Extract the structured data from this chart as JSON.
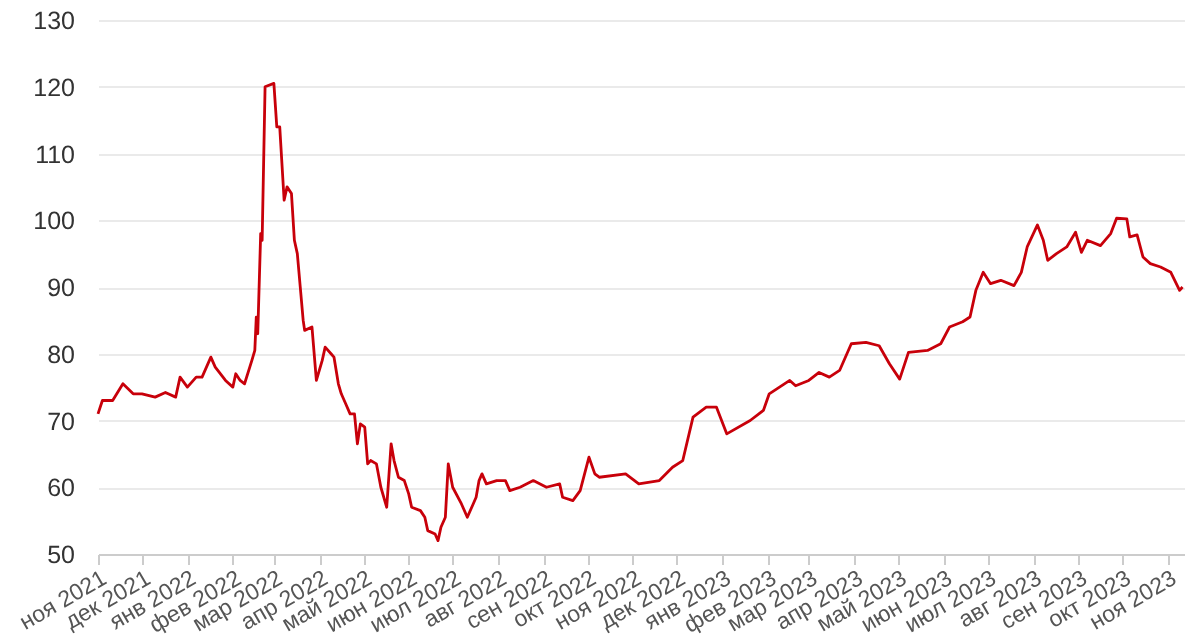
{
  "chart_data": {
    "type": "line",
    "x": [
      "2021-11-01",
      "2021-11-04",
      "2021-11-11",
      "2021-11-18",
      "2021-11-25",
      "2021-12-01",
      "2021-12-10",
      "2021-12-17",
      "2021-12-24",
      "2021-12-27",
      "2022-01-01",
      "2022-01-07",
      "2022-01-11",
      "2022-01-17",
      "2022-01-20",
      "2022-01-27",
      "2022-02-01",
      "2022-02-03",
      "2022-02-06",
      "2022-02-09",
      "2022-02-14",
      "2022-02-16",
      "2022-02-17",
      "2022-02-18",
      "2022-02-20",
      "2022-02-21",
      "2022-02-23",
      "2022-03-01",
      "2022-03-03",
      "2022-03-05",
      "2022-03-08",
      "2022-03-10",
      "2022-03-13",
      "2022-03-15",
      "2022-03-17",
      "2022-03-19",
      "2022-03-21",
      "2022-03-22",
      "2022-03-27",
      "2022-03-30",
      "2022-04-03",
      "2022-04-05",
      "2022-04-09",
      "2022-04-11",
      "2022-04-14",
      "2022-04-16",
      "2022-04-19",
      "2022-04-22",
      "2022-04-25",
      "2022-04-27",
      "2022-04-29",
      "2022-05-02",
      "2022-05-04",
      "2022-05-06",
      "2022-05-10",
      "2022-05-13",
      "2022-05-17",
      "2022-05-20",
      "2022-05-22",
      "2022-05-25",
      "2022-05-29",
      "2022-06-01",
      "2022-06-03",
      "2022-06-09",
      "2022-06-12",
      "2022-06-14",
      "2022-06-19",
      "2022-06-21",
      "2022-06-23",
      "2022-06-26",
      "2022-06-28",
      "2022-07-01",
      "2022-07-07",
      "2022-07-11",
      "2022-07-15",
      "2022-07-17",
      "2022-07-19",
      "2022-07-21",
      "2022-07-24",
      "2022-07-31",
      "2022-08-06",
      "2022-08-09",
      "2022-08-16",
      "2022-08-25",
      "2022-09-03",
      "2022-09-12",
      "2022-09-14",
      "2022-09-21",
      "2022-09-26",
      "2022-10-02",
      "2022-10-06",
      "2022-10-09",
      "2022-10-27",
      "2022-11-05",
      "2022-11-19",
      "2022-11-28",
      "2022-12-05",
      "2022-12-12",
      "2022-12-21",
      "2022-12-28",
      "2023-01-04",
      "2023-01-20",
      "2023-01-29",
      "2023-02-02",
      "2023-02-09",
      "2023-02-16",
      "2023-02-20",
      "2023-03-01",
      "2023-03-08",
      "2023-03-15",
      "2023-03-22",
      "2023-03-30",
      "2023-04-09",
      "2023-04-18",
      "2023-04-25",
      "2023-05-02",
      "2023-05-08",
      "2023-05-21",
      "2023-05-30",
      "2023-06-05",
      "2023-06-14",
      "2023-06-19",
      "2023-06-23",
      "2023-06-28",
      "2023-07-03",
      "2023-07-10",
      "2023-07-19",
      "2023-07-24",
      "2023-07-28",
      "2023-08-04",
      "2023-08-08",
      "2023-08-11",
      "2023-08-17",
      "2023-08-24",
      "2023-08-30",
      "2023-09-03",
      "2023-09-07",
      "2023-09-16",
      "2023-09-23",
      "2023-09-27",
      "2023-10-04",
      "2023-10-06",
      "2023-10-11",
      "2023-10-15",
      "2023-10-20",
      "2023-10-27",
      "2023-11-03",
      "2023-11-09",
      "2023-11-11"
    ],
    "series": [
      {
        "color": "#c8000a",
        "values": [
          71,
          73,
          73,
          75.5,
          74,
          74,
          73.5,
          74.2,
          73.5,
          76.5,
          75,
          76.5,
          76.5,
          79.5,
          78,
          76,
          75,
          77,
          76,
          75.5,
          79,
          80.5,
          85.5,
          83,
          98,
          97,
          120,
          120.5,
          114,
          114,
          103,
          105,
          104,
          97,
          95,
          90,
          85,
          83.5,
          84,
          76,
          79,
          81,
          80,
          79.5,
          75.5,
          74,
          72.5,
          71,
          71,
          66.5,
          69.5,
          69,
          63.5,
          64,
          63.5,
          60,
          57,
          66.5,
          64,
          61.5,
          61,
          59,
          57,
          56.5,
          55.5,
          53.5,
          53,
          52,
          54,
          55.5,
          63.5,
          60,
          57.5,
          55.5,
          57.5,
          58.5,
          61,
          62,
          60.5,
          61,
          61,
          59.5,
          60,
          61,
          60,
          60.5,
          58.5,
          58,
          59.5,
          64.5,
          62,
          61.5,
          62,
          60.5,
          61,
          63,
          64,
          70.5,
          72,
          72,
          68,
          70,
          71.5,
          74,
          75,
          76,
          75.2,
          76,
          77.2,
          76.5,
          77.5,
          81.5,
          81.7,
          81.2,
          78.5,
          76.2,
          80.2,
          80.5,
          81.5,
          84,
          84.8,
          85.5,
          89.5,
          92.2,
          90.5,
          91,
          90.2,
          92.2,
          96,
          99.3,
          97,
          94,
          95,
          96,
          98.2,
          95.2,
          97,
          96.2,
          98,
          100.3,
          100.2,
          97.5,
          97.8,
          94.5,
          93.5,
          93,
          92.2,
          89.5,
          90
        ]
      }
    ],
    "xlim": [
      "2021-11-01",
      "2023-11-12"
    ],
    "xticks": [
      {
        "value": "2021-11-01",
        "label": "ноя 2021"
      },
      {
        "value": "2021-12-01",
        "label": "дек 2021"
      },
      {
        "value": "2022-01-01",
        "label": "янв 2022"
      },
      {
        "value": "2022-02-01",
        "label": "фев 2022"
      },
      {
        "value": "2022-03-01",
        "label": "мар 2022"
      },
      {
        "value": "2022-04-01",
        "label": "апр 2022"
      },
      {
        "value": "2022-05-01",
        "label": "май 2022"
      },
      {
        "value": "2022-06-01",
        "label": "июн 2022"
      },
      {
        "value": "2022-07-01",
        "label": "июл 2022"
      },
      {
        "value": "2022-08-01",
        "label": "авг 2022"
      },
      {
        "value": "2022-09-01",
        "label": "сен 2022"
      },
      {
        "value": "2022-10-01",
        "label": "окт 2022"
      },
      {
        "value": "2022-11-01",
        "label": "ноя 2022"
      },
      {
        "value": "2022-12-01",
        "label": "дек 2022"
      },
      {
        "value": "2023-01-01",
        "label": "янв 2023"
      },
      {
        "value": "2023-02-01",
        "label": "фев 2023"
      },
      {
        "value": "2023-03-01",
        "label": "мар 2023"
      },
      {
        "value": "2023-04-01",
        "label": "апр 2023"
      },
      {
        "value": "2023-05-01",
        "label": "май 2023"
      },
      {
        "value": "2023-06-01",
        "label": "июн 2023"
      },
      {
        "value": "2023-07-01",
        "label": "июл 2023"
      },
      {
        "value": "2023-08-01",
        "label": "авг 2023"
      },
      {
        "value": "2023-09-01",
        "label": "сен 2023"
      },
      {
        "value": "2023-10-01",
        "label": "окт 2023"
      },
      {
        "value": "2023-11-01",
        "label": "ноя 2023"
      }
    ],
    "ylim": [
      50,
      130
    ],
    "yticks": [
      50,
      60,
      70,
      80,
      90,
      100,
      110,
      120,
      130
    ],
    "grid": "y"
  }
}
